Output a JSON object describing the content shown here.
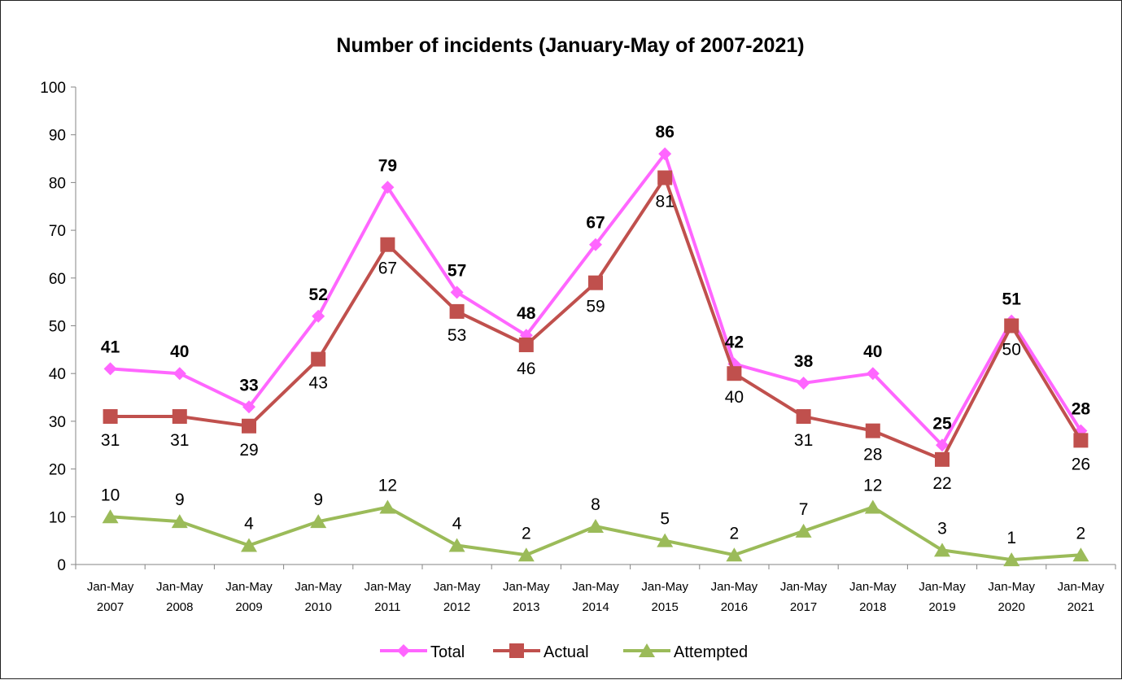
{
  "chart_data": {
    "type": "line",
    "title": "Number of incidents (January-May of 2007-2021)",
    "xlabel": "",
    "ylabel": "",
    "ylim": [
      0,
      100
    ],
    "yticks": [
      0,
      10,
      20,
      30,
      40,
      50,
      60,
      70,
      80,
      90,
      100
    ],
    "grid": false,
    "legend_position": "bottom",
    "categories": [
      [
        "Jan-May",
        "2007"
      ],
      [
        "Jan-May",
        "2008"
      ],
      [
        "Jan-May",
        "2009"
      ],
      [
        "Jan-May",
        "2010"
      ],
      [
        "Jan-May",
        "2011"
      ],
      [
        "Jan-May",
        "2012"
      ],
      [
        "Jan-May",
        "2013"
      ],
      [
        "Jan-May",
        "2014"
      ],
      [
        "Jan-May",
        "2015"
      ],
      [
        "Jan-May",
        "2016"
      ],
      [
        "Jan-May",
        "2017"
      ],
      [
        "Jan-May",
        "2018"
      ],
      [
        "Jan-May",
        "2019"
      ],
      [
        "Jan-May",
        "2020"
      ],
      [
        "Jan-May",
        "2021"
      ]
    ],
    "series": [
      {
        "name": "Total",
        "color": "#ff66ff",
        "marker": "diamond",
        "label_style": "bold",
        "label_position": "above",
        "values": [
          41,
          40,
          33,
          52,
          79,
          57,
          48,
          67,
          86,
          42,
          38,
          40,
          25,
          51,
          28
        ]
      },
      {
        "name": "Actual",
        "color": "#c0504d",
        "marker": "square",
        "label_style": "normal",
        "label_position": "below",
        "values": [
          31,
          31,
          29,
          43,
          67,
          53,
          46,
          59,
          81,
          40,
          31,
          28,
          22,
          50,
          26
        ]
      },
      {
        "name": "Attempted",
        "color": "#9bbb59",
        "marker": "triangle",
        "label_style": "normal",
        "label_position": "above",
        "values": [
          10,
          9,
          4,
          9,
          12,
          4,
          2,
          8,
          5,
          2,
          7,
          12,
          3,
          1,
          2
        ]
      }
    ]
  }
}
